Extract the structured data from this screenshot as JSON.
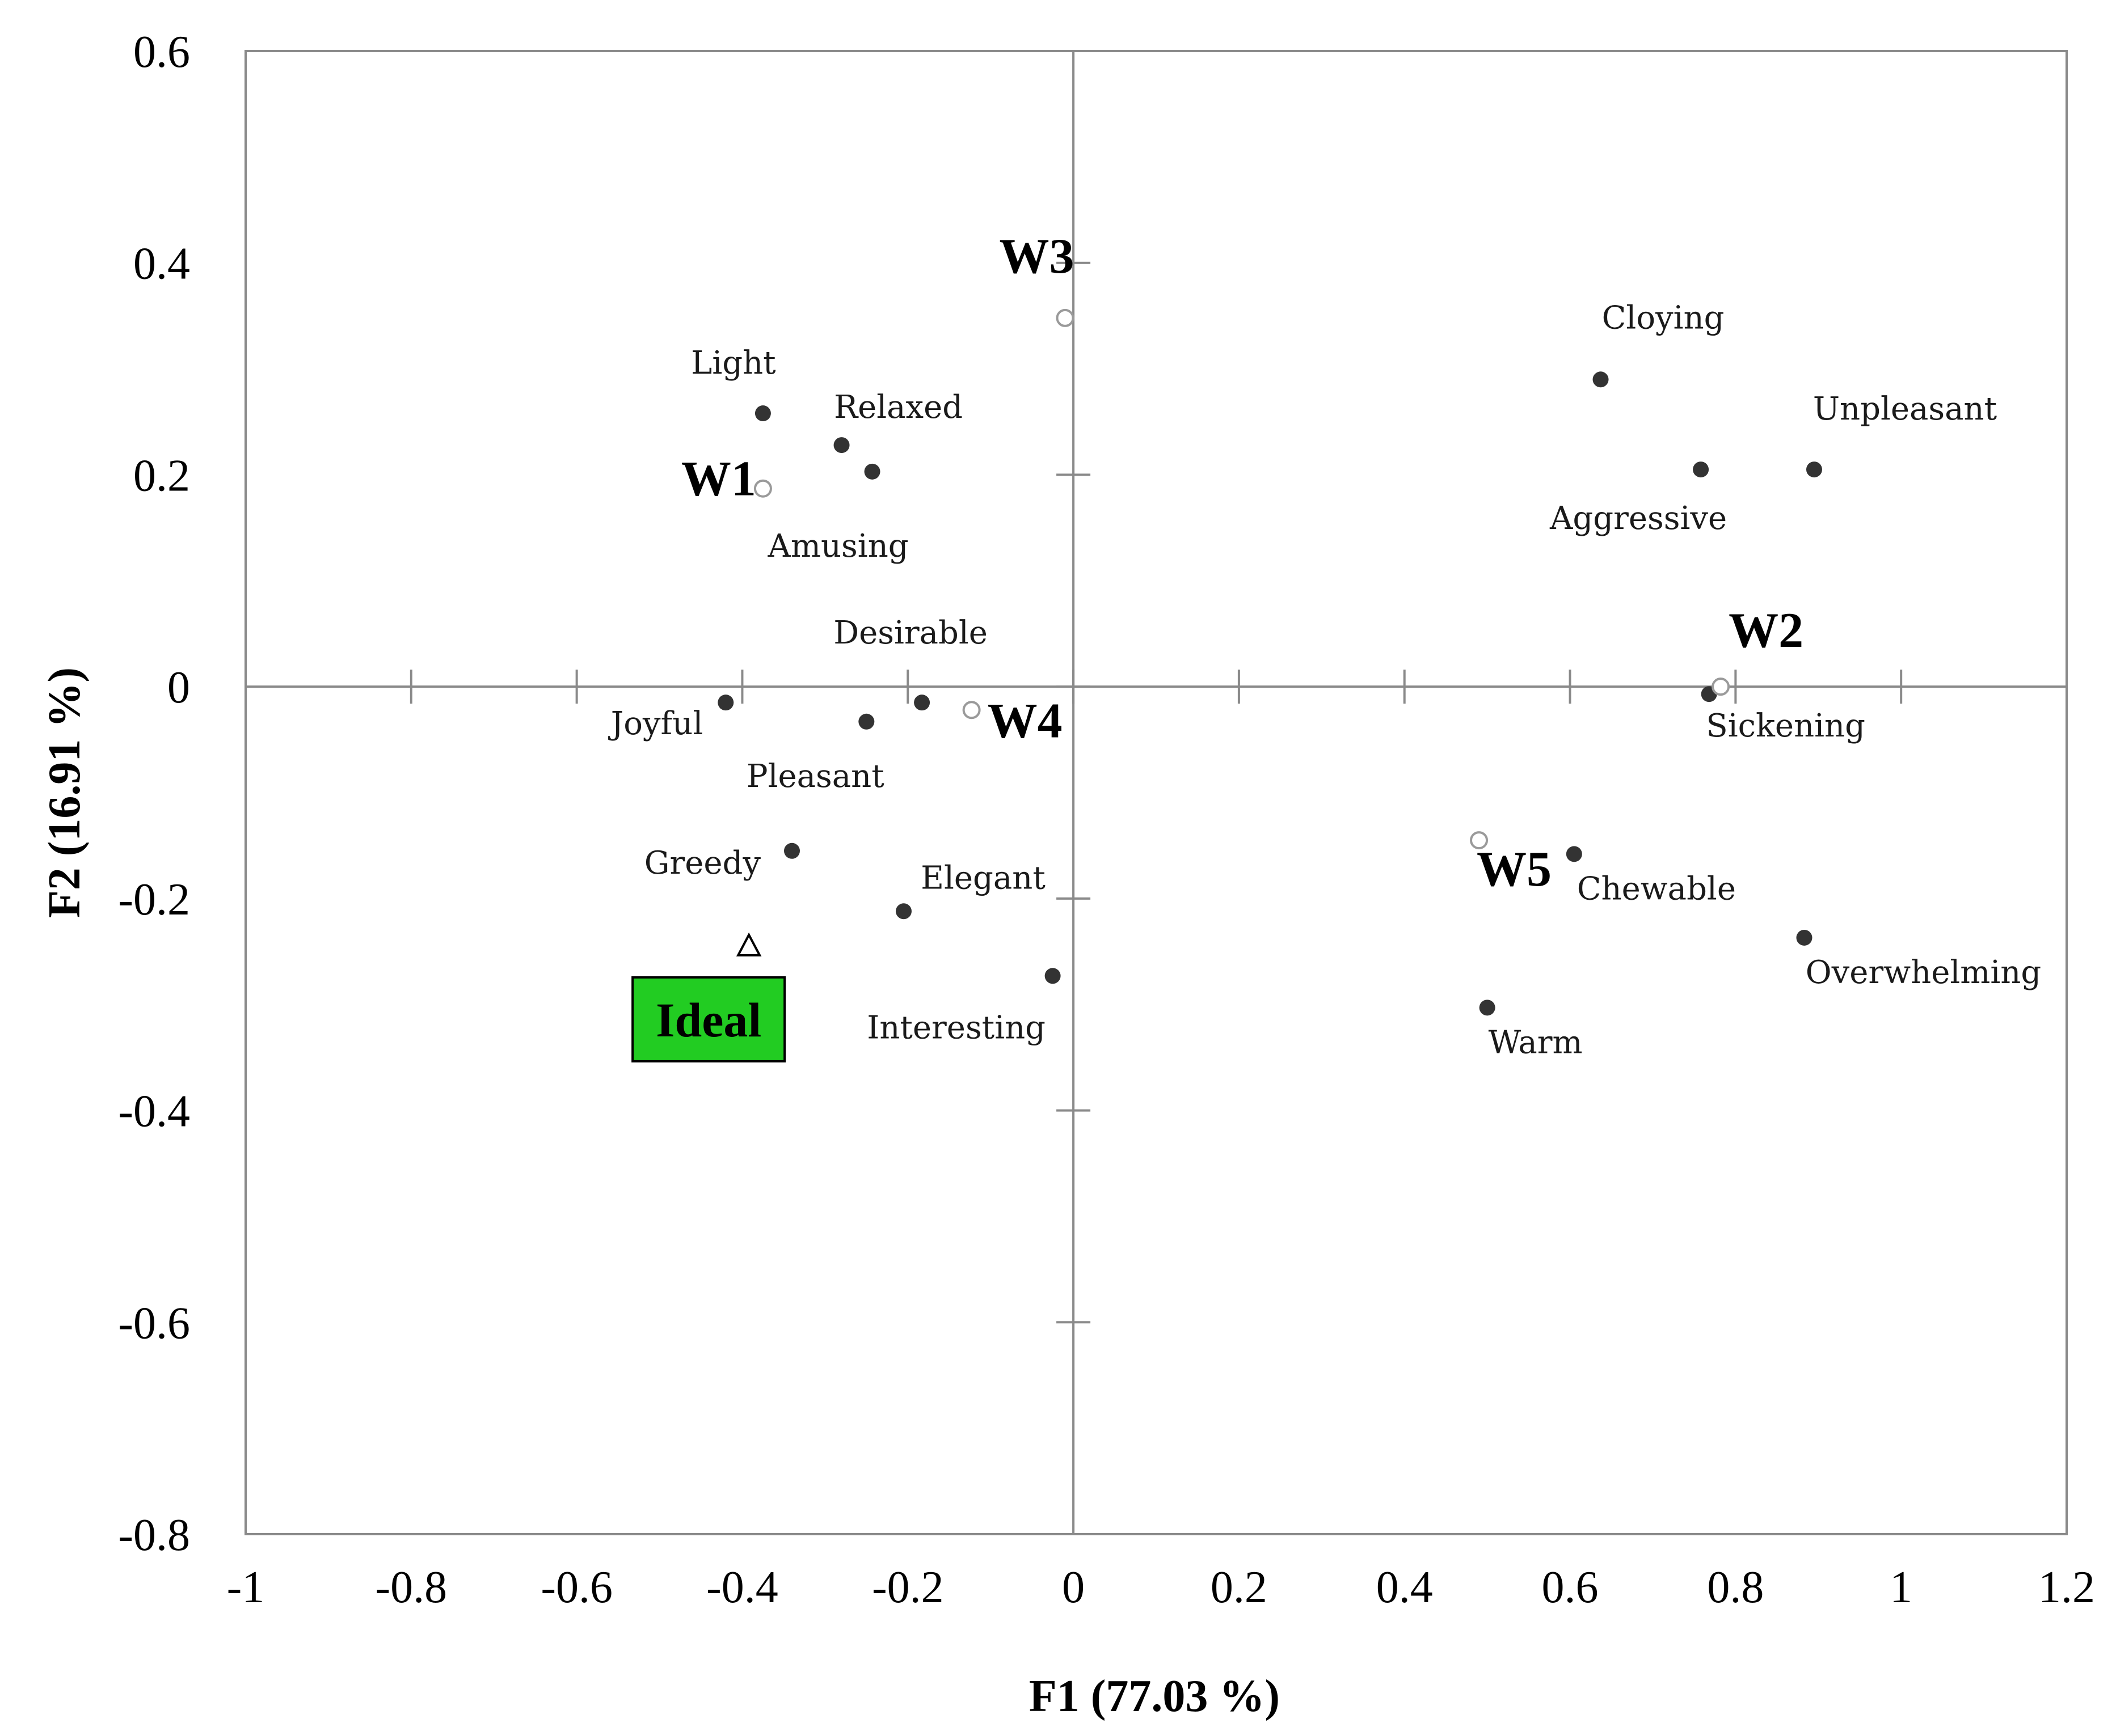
{
  "chart_data": {
    "type": "scatter",
    "xlabel": "F1 (77.03 %)",
    "ylabel": "F2 (16.91 %)",
    "xlim": [
      -1,
      1.2
    ],
    "ylim": [
      -0.8,
      0.6
    ],
    "x_ticks": [
      "-1",
      "-0.8",
      "-0.6",
      "-0.4",
      "-0.2",
      "0",
      "0.2",
      "0.4",
      "0.6",
      "0.8",
      "1",
      "1.2"
    ],
    "y_ticks": [
      "0.6",
      "0.4",
      "0.2",
      "0",
      "-0.2",
      "-0.4",
      "-0.6",
      "-0.8"
    ],
    "grid": false,
    "attributes": [
      {
        "label": "Light",
        "x": -0.375,
        "y": 0.258
      },
      {
        "label": "Relaxed",
        "x": -0.28,
        "y": 0.228
      },
      {
        "label": "Amusing",
        "x": -0.243,
        "y": 0.203
      },
      {
        "label": "Desirable",
        "x": -0.183,
        "y": -0.015
      },
      {
        "label": "Joyful",
        "x": -0.42,
        "y": -0.015
      },
      {
        "label": "Pleasant",
        "x": -0.25,
        "y": -0.033
      },
      {
        "label": "Greedy",
        "x": -0.34,
        "y": -0.155
      },
      {
        "label": "Elegant",
        "x": -0.205,
        "y": -0.212
      },
      {
        "label": "Interesting",
        "x": -0.025,
        "y": -0.273
      },
      {
        "label": "Cloying",
        "x": 0.637,
        "y": 0.29
      },
      {
        "label": "Aggressive",
        "x": 0.758,
        "y": 0.205
      },
      {
        "label": "Unpleasant",
        "x": 0.895,
        "y": 0.205
      },
      {
        "label": "Sickening",
        "x": 0.768,
        "y": -0.007
      },
      {
        "label": "Chewable",
        "x": 0.605,
        "y": -0.158
      },
      {
        "label": "Overwhelming",
        "x": 0.883,
        "y": -0.237
      },
      {
        "label": "Warm",
        "x": 0.5,
        "y": -0.303
      }
    ],
    "wines": [
      {
        "label": "W1",
        "x": -0.375,
        "y": 0.187
      },
      {
        "label": "W2",
        "x": 0.782,
        "y": 0.0
      },
      {
        "label": "W3",
        "x": -0.01,
        "y": 0.348
      },
      {
        "label": "W4",
        "x": -0.123,
        "y": -0.022
      },
      {
        "label": "W5",
        "x": 0.49,
        "y": -0.145
      }
    ],
    "ideal": {
      "label": "Ideal",
      "x": -0.392,
      "y": -0.245
    }
  }
}
